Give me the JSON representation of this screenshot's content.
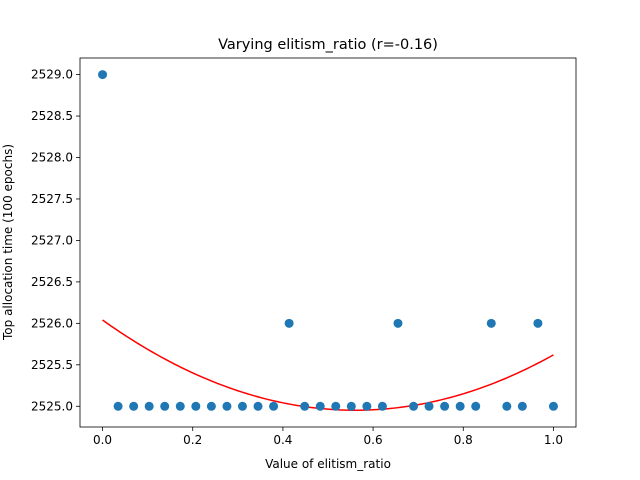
{
  "chart_data": {
    "type": "scatter",
    "title": "Varying elitism_ratio (r=-0.16)",
    "xlabel": "Value of elitism_ratio",
    "ylabel": "Top allocation time (100 epochs)",
    "xlim": [
      -0.05,
      1.05
    ],
    "ylim": [
      2524.75,
      2529.2
    ],
    "xticks": [
      0.0,
      0.2,
      0.4,
      0.6,
      0.8,
      1.0
    ],
    "xtick_labels": [
      "0.0",
      "0.2",
      "0.4",
      "0.6",
      "0.8",
      "1.0"
    ],
    "yticks": [
      2525.0,
      2525.5,
      2526.0,
      2526.5,
      2527.0,
      2527.5,
      2528.0,
      2528.5,
      2529.0
    ],
    "ytick_labels": [
      "2525.0",
      "2525.5",
      "2526.0",
      "2526.5",
      "2527.0",
      "2527.5",
      "2528.0",
      "2528.5",
      "2529.0"
    ],
    "grid": false,
    "point_color": "#1f77b4",
    "fit_color": "#ff0000",
    "points": {
      "x": [
        0.0,
        0.0345,
        0.069,
        0.1034,
        0.1379,
        0.1724,
        0.2069,
        0.2414,
        0.2759,
        0.3103,
        0.3448,
        0.3793,
        0.4138,
        0.4483,
        0.4828,
        0.5172,
        0.5517,
        0.5862,
        0.6207,
        0.6552,
        0.6897,
        0.7241,
        0.7586,
        0.7931,
        0.8276,
        0.8621,
        0.8966,
        0.931,
        0.9655,
        1.0
      ],
      "y": [
        2529,
        2525,
        2525,
        2525,
        2525,
        2525,
        2525,
        2525,
        2525,
        2525,
        2525,
        2525,
        2526,
        2525,
        2525,
        2525,
        2525,
        2525,
        2525,
        2526,
        2525,
        2525,
        2525,
        2525,
        2525,
        2526,
        2525,
        2525,
        2526,
        2525
      ]
    },
    "fit": {
      "type": "quadratic",
      "coefficients": [
        2526.04,
        -3.88,
        3.46
      ]
    }
  }
}
